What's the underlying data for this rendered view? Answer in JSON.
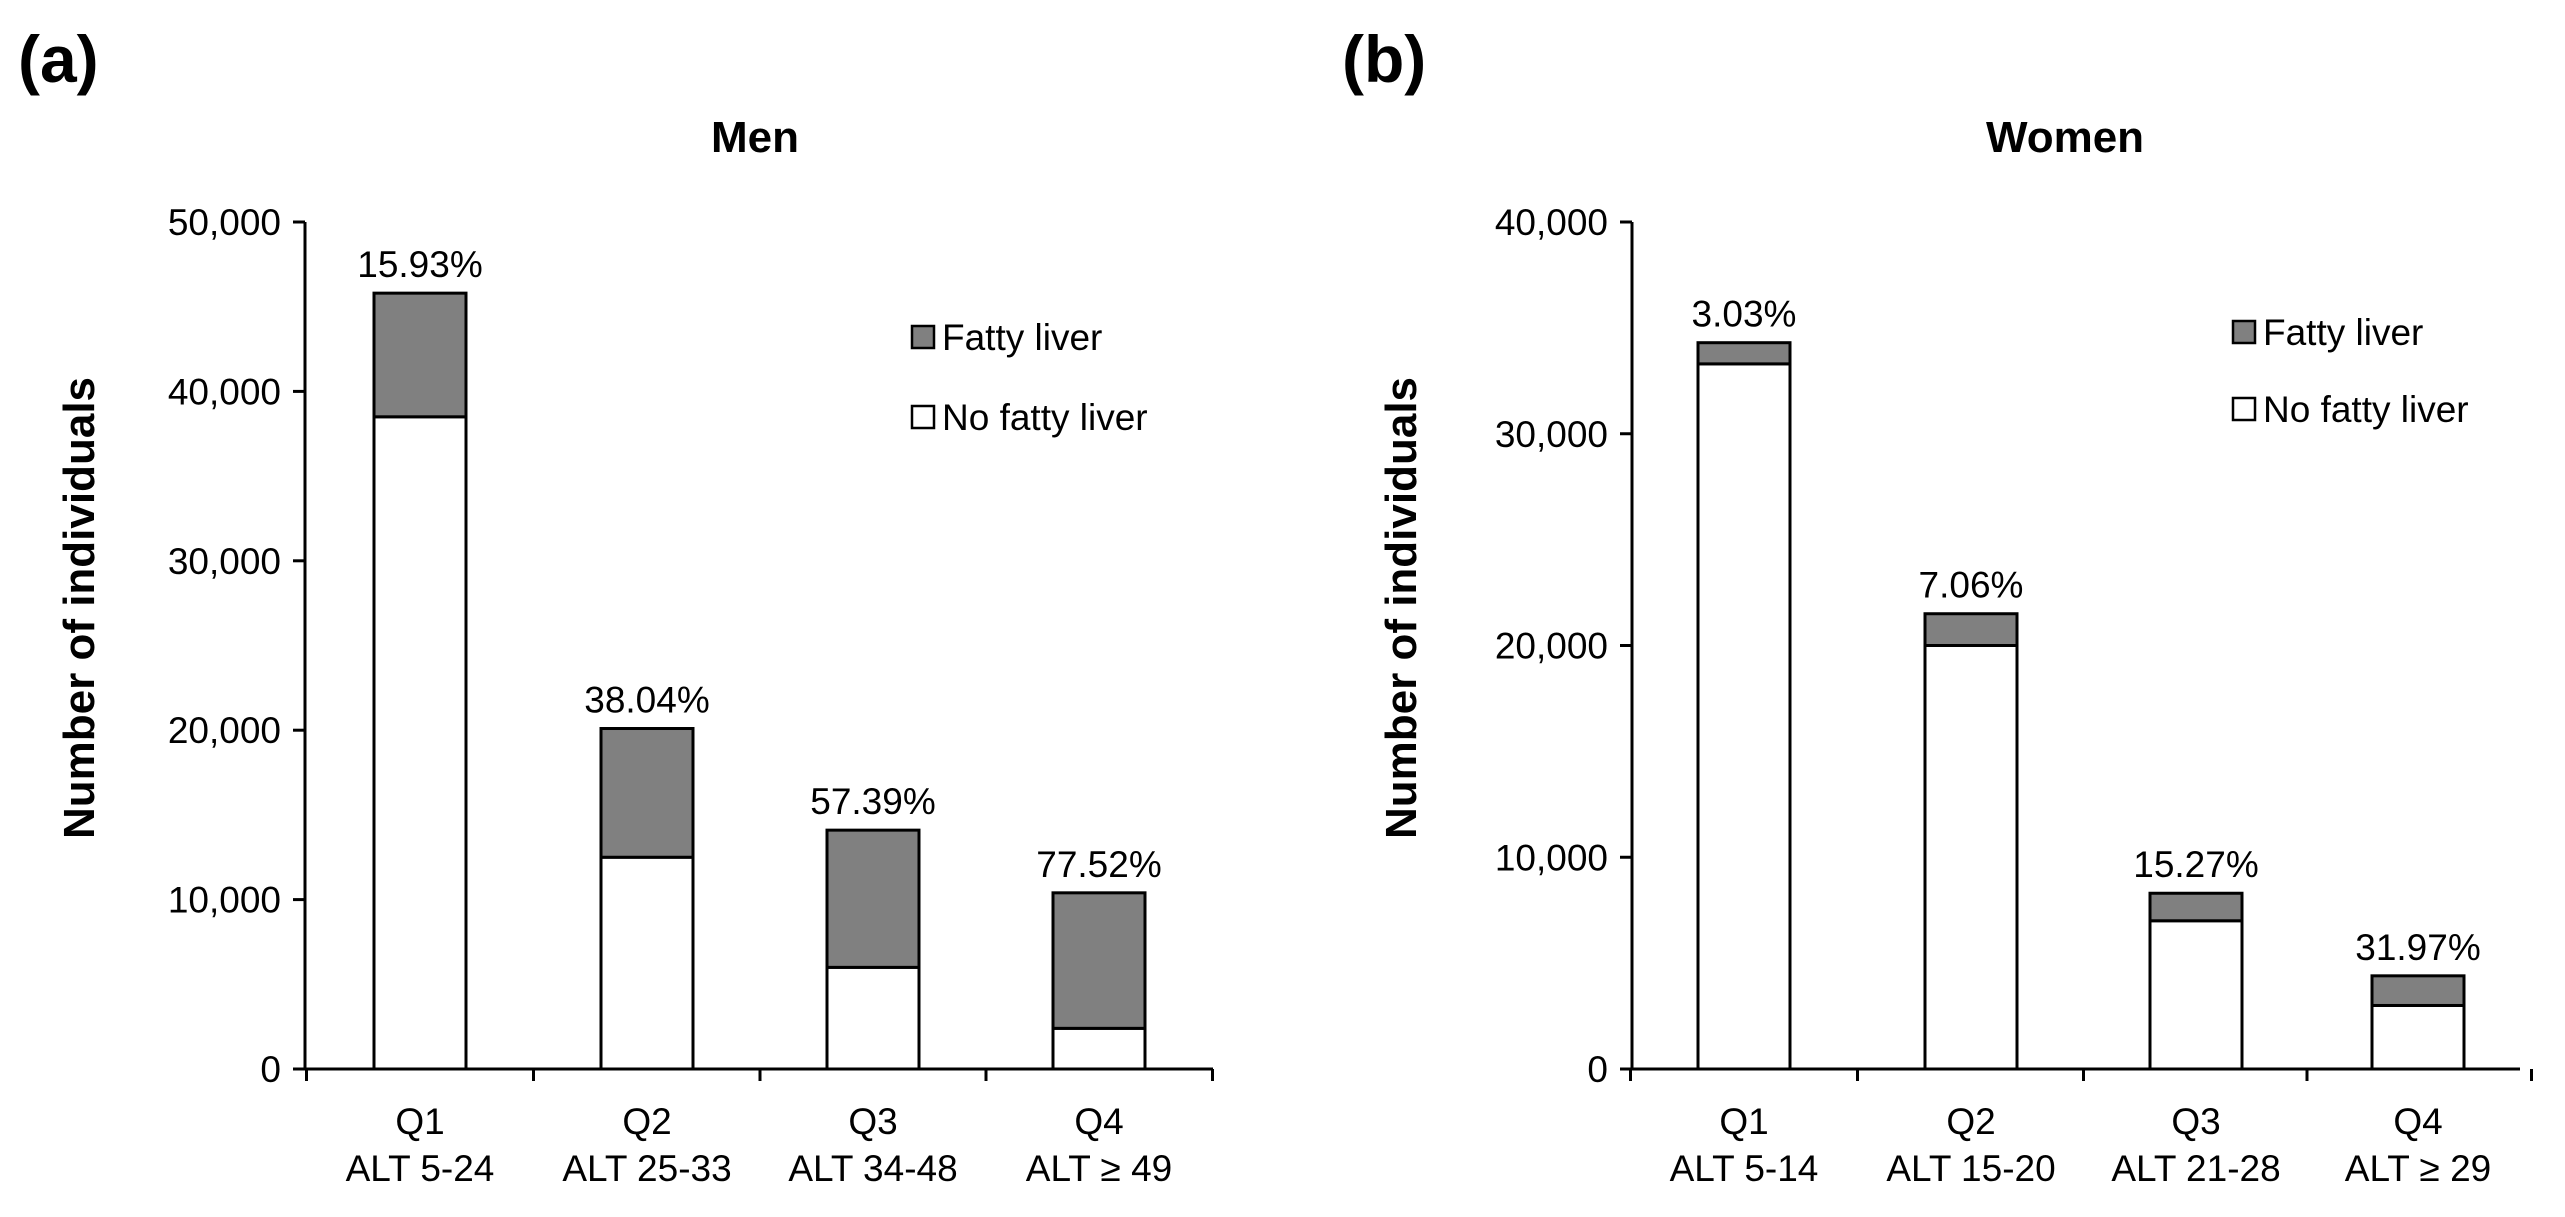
{
  "chart_data": [
    {
      "panel": "(a)",
      "type": "bar",
      "stacked": true,
      "title": "Men",
      "ylabel": "Number of individuals",
      "xlabel": "",
      "ylim": [
        0,
        50000
      ],
      "yticks": [
        0,
        10000,
        20000,
        30000,
        40000,
        50000
      ],
      "ytick_labels": [
        "0",
        "10,000",
        "20,000",
        "30,000",
        "40,000",
        "50,000"
      ],
      "categories": [
        "Q1",
        "Q2",
        "Q3",
        "Q4"
      ],
      "category_sublabels": [
        "ALT 5-24",
        "ALT 25-33",
        "ALT 34-48",
        "ALT ≥ 49"
      ],
      "series": [
        {
          "name": "No fatty liver",
          "color": "#ffffff",
          "values": [
            38500,
            12500,
            6000,
            2400
          ]
        },
        {
          "name": "Fatty liver",
          "color": "#808080",
          "values": [
            7300,
            7600,
            8100,
            8000
          ]
        }
      ],
      "bar_labels": [
        "15.93%",
        "38.04%",
        "57.39%",
        "77.52%"
      ],
      "legend": [
        "Fatty liver",
        "No fatty liver"
      ],
      "legend_position": "top-right"
    },
    {
      "panel": "(b)",
      "type": "bar",
      "stacked": true,
      "title": "Women",
      "ylabel": "Number of individuals",
      "xlabel": "",
      "ylim": [
        0,
        40000
      ],
      "yticks": [
        0,
        10000,
        20000,
        30000,
        40000
      ],
      "ytick_labels": [
        "0",
        "10,000",
        "20,000",
        "30,000",
        "40,000"
      ],
      "categories": [
        "Q1",
        "Q2",
        "Q3",
        "Q4"
      ],
      "category_sublabels": [
        "ALT 5-14",
        "ALT 15-20",
        "ALT 21-28",
        "ALT ≥ 29"
      ],
      "series": [
        {
          "name": "No fatty liver",
          "color": "#ffffff",
          "values": [
            33300,
            20000,
            7000,
            3000
          ]
        },
        {
          "name": "Fatty liver",
          "color": "#808080",
          "values": [
            1000,
            1500,
            1300,
            1400
          ]
        }
      ],
      "bar_labels": [
        "3.03%",
        "7.06%",
        "15.27%",
        "31.97%"
      ],
      "legend": [
        "Fatty liver",
        "No fatty liver"
      ],
      "legend_position": "top-right"
    }
  ]
}
